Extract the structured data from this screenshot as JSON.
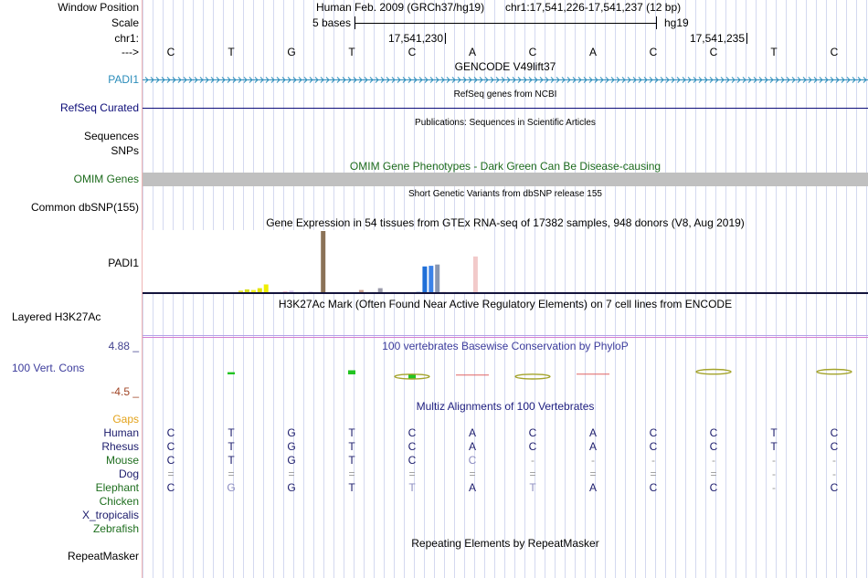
{
  "header": {
    "window_position_label": "Window Position",
    "assembly": "Human Feb. 2009 (GRCh37/hg19)",
    "range": "chr1:17,541,226-17,541,237 (12 bp)"
  },
  "scale": {
    "label": "Scale",
    "bar_text": "5 bases",
    "assembly_label": "hg19"
  },
  "position": {
    "chrom_label": "chr1:",
    "tick_1": "17,541,230",
    "tick_2": "17,541,235"
  },
  "strand": {
    "label": "--->",
    "bases": [
      "C",
      "T",
      "G",
      "T",
      "C",
      "A",
      "C",
      "A",
      "C",
      "C",
      "T",
      "C"
    ]
  },
  "tracks": {
    "gencode": {
      "title": "GENCODE V49lift37",
      "label": "PADI1",
      "color": "#2a8cba"
    },
    "refseq": {
      "title": "RefSeq genes from NCBI",
      "label": "RefSeq Curated",
      "color": "#0c0c78"
    },
    "publications": {
      "title": "Publications: Sequences in Scientific Articles",
      "label": "Sequences"
    },
    "snps": {
      "label": "SNPs"
    },
    "omim": {
      "title": "OMIM Gene Phenotypes - Dark Green Can Be Disease-causing",
      "label": "OMIM Genes",
      "color": "#1d6b1d",
      "bar_color": "#c0c0c0"
    },
    "dbsnp": {
      "title": "Short Genetic Variants from dbSNP release 155",
      "label": "Common dbSNP(155)"
    },
    "gtex": {
      "title": "Gene Expression in 54 tissues from GTEx RNA-seq of 17382 samples, 948 donors (V8, Aug 2019)",
      "label": "PADI1",
      "tissue_count": 54,
      "bars": [
        {
          "tissue": 6,
          "value": 2,
          "color": "#c8c0e8"
        },
        {
          "tissue": 9,
          "value": 1.5,
          "color": "#f0c4d4"
        },
        {
          "tissue": 11,
          "value": 1.5,
          "color": "#b0c8e4"
        },
        {
          "tissue": 12,
          "value": 1,
          "color": "#d0d0d0"
        },
        {
          "tissue": 15,
          "value": 4,
          "color": "#e6e632"
        },
        {
          "tissue": 16,
          "value": 6,
          "color": "#d8e020"
        },
        {
          "tissue": 17,
          "value": 5,
          "color": "#f0f020"
        },
        {
          "tissue": 18,
          "value": 8,
          "color": "#e4e400"
        },
        {
          "tissue": 19,
          "value": 14,
          "color": "#eeee00"
        },
        {
          "tissue": 22,
          "value": 3,
          "color": "#f0c0d0"
        },
        {
          "tissue": 23,
          "value": 4,
          "color": "#d8c8f0"
        },
        {
          "tissue": 26,
          "value": 2,
          "color": "#b8a8e0"
        },
        {
          "tissue": 28,
          "value": 100,
          "color": "#8b7257"
        },
        {
          "tissue": 34,
          "value": 5,
          "color": "#c8a090"
        },
        {
          "tissue": 36,
          "value": 2,
          "color": "#d8d8d8"
        },
        {
          "tissue": 37,
          "value": 8,
          "color": "#9a9aaa"
        },
        {
          "tissue": 39,
          "value": 2,
          "color": "#d0c0e0"
        },
        {
          "tissue": 43,
          "value": 3,
          "color": "#c8d8f0"
        },
        {
          "tissue": 44,
          "value": 43,
          "color": "#1f6fd8"
        },
        {
          "tissue": 45,
          "value": 44,
          "color": "#3b82e8"
        },
        {
          "tissue": 46,
          "value": 46,
          "color": "#8896b0"
        },
        {
          "tissue": 47,
          "value": 2,
          "color": "#e0c8c8"
        },
        {
          "tissue": 49,
          "value": 2,
          "color": "#c0d0e0"
        },
        {
          "tissue": 52,
          "value": 59,
          "color": "#f2caca"
        }
      ]
    },
    "h3k27ac": {
      "title": "H3K27Ac Mark (Often Found Near Active Regulatory Elements) on 7 cell lines from ENCODE",
      "label": "Layered H3K27Ac",
      "line_colors": [
        "#b4a0e8",
        "#d47fd0"
      ]
    },
    "phylop": {
      "title": "100 vertebrates Basewise Conservation by PhyloP",
      "label": "100 Vert. Cons",
      "max_label": "4.88 _",
      "min_label": "-4.5 _",
      "range": [
        -4.5,
        4.88
      ],
      "label_color": "#3c3c9c",
      "max_color": "#42428f",
      "min_color": "#a04424",
      "colors": {
        "bars": "#22c422",
        "lines": "#e06464",
        "loops": "#a3a32a"
      },
      "bars": [
        {
          "base": 1,
          "score": 0.45
        },
        {
          "base": 3,
          "score": 0.85
        },
        {
          "base": 4,
          "score": -1.0
        }
      ],
      "lines": [
        {
          "base": 5,
          "score": -0.15
        },
        {
          "base": 7,
          "score": 0.05
        }
      ],
      "loops": [
        {
          "base": 4,
          "score": -0.45
        },
        {
          "base": 6,
          "score": -0.45
        },
        {
          "base": 9,
          "score": 0.55
        },
        {
          "base": 11,
          "score": 0.55
        }
      ]
    },
    "multiz": {
      "title": "Multiz Alignments of 100 Vertebrates",
      "title_color": "#202080",
      "gaps_label": "Gaps",
      "gaps_color": "#e3a21a",
      "base_color": "#1c1c6c",
      "faint_color": "#8c8cc0",
      "gap_color": "#999999",
      "rows": [
        {
          "species": "Human",
          "color": "#1c1c6c",
          "bases": [
            "C",
            "T",
            "G",
            "T",
            "C",
            "A",
            "C",
            "A",
            "C",
            "C",
            "T",
            "C"
          ],
          "faint": []
        },
        {
          "species": "Rhesus",
          "color": "#1c1c6c",
          "bases": [
            "C",
            "T",
            "G",
            "T",
            "C",
            "A",
            "C",
            "A",
            "C",
            "C",
            "T",
            "C"
          ],
          "faint": []
        },
        {
          "species": "Mouse",
          "color": "#1e6e1e",
          "bases": [
            "C",
            "T",
            "G",
            "T",
            "C",
            "C",
            "-",
            "-",
            "-",
            "-",
            "-",
            "-"
          ],
          "faint": [
            5
          ]
        },
        {
          "species": "Dog",
          "color": "#1c1c6c",
          "bases": [
            "=",
            "=",
            "=",
            "=",
            "=",
            "=",
            "=",
            "=",
            "=",
            "=",
            "-",
            "-"
          ],
          "faint": []
        },
        {
          "species": "Elephant",
          "color": "#1e6e1e",
          "bases": [
            "C",
            "G",
            "G",
            "T",
            "T",
            "A",
            "T",
            "A",
            "C",
            "C",
            "-",
            "C"
          ],
          "faint": [
            1,
            4,
            6
          ]
        },
        {
          "species": "Chicken",
          "color": "#1e6e1e",
          "bases": [],
          "faint": []
        },
        {
          "species": "X_tropicalis",
          "color": "#1c1c6c",
          "bases": [],
          "faint": []
        },
        {
          "species": "Zebrafish",
          "color": "#1e6e1e",
          "bases": [],
          "faint": []
        }
      ]
    },
    "repeatmasker": {
      "title": "Repeating Elements by RepeatMasker",
      "label": "RepeatMasker"
    }
  }
}
